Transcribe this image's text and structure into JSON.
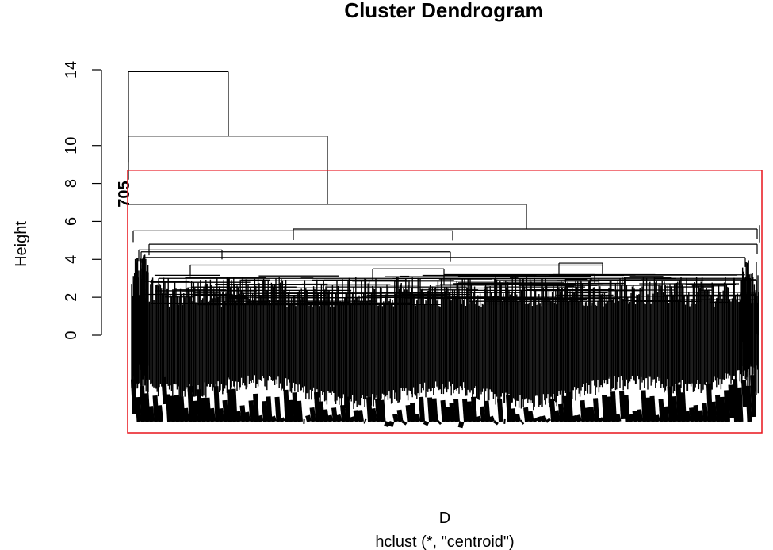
{
  "chart_data": {
    "type": "dendrogram",
    "title": "Cluster Dendrogram",
    "xlabel": "D",
    "sublabel": "hclust (*, \"centroid\")",
    "ylabel": "Height",
    "ylim": [
      0,
      14
    ],
    "yticks": [
      0,
      2,
      4,
      6,
      8,
      10,
      14
    ],
    "grid": false,
    "legend": "none",
    "leaf_label_visible": "705",
    "top_merges": [
      {
        "height": 13.9,
        "left": "705",
        "right": "cluster"
      },
      {
        "height": 10.5,
        "left": "cluster",
        "right": "cluster"
      },
      {
        "height": 6.9,
        "left": "cluster",
        "right": "cluster"
      }
    ],
    "highlight_rect": {
      "color": "#e8141c",
      "cut_height": 8.7
    },
    "colors": {
      "line": "#000000",
      "highlight": "#e8141c"
    }
  }
}
